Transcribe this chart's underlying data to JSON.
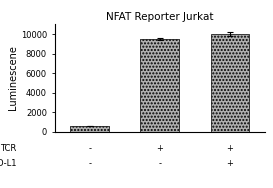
{
  "title": "NFAT Reporter Jurkat",
  "ylabel": "Luminescene",
  "bar_values": [
    600,
    9500,
    10000
  ],
  "bar_errors": [
    0,
    120,
    230
  ],
  "bar_color": "#b0b0b0",
  "bar_hatch": ".....",
  "bar_positions": [
    0,
    1,
    2
  ],
  "bar_width": 0.55,
  "ylim": [
    0,
    11000
  ],
  "yticks": [
    0,
    2000,
    4000,
    6000,
    8000,
    10000
  ],
  "tcr_labels": [
    "-",
    "+",
    "+"
  ],
  "pdl1_labels": [
    "-",
    "-",
    "+"
  ],
  "tcr_row_label": "TCR",
  "background_color": "#ffffff",
  "title_fontsize": 7.5,
  "axis_fontsize": 7,
  "tick_fontsize": 6,
  "label_fontsize": 6
}
